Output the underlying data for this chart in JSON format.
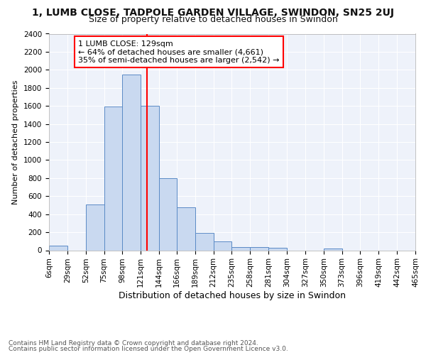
{
  "title": "1, LUMB CLOSE, TADPOLE GARDEN VILLAGE, SWINDON, SN25 2UJ",
  "subtitle": "Size of property relative to detached houses in Swindon",
  "xlabel": "Distribution of detached houses by size in Swindon",
  "ylabel": "Number of detached properties",
  "footnote1": "Contains HM Land Registry data © Crown copyright and database right 2024.",
  "footnote2": "Contains public sector information licensed under the Open Government Licence v3.0.",
  "annotation_line1": "1 LUMB CLOSE: 129sqm",
  "annotation_line2": "← 64% of detached houses are smaller (4,661)",
  "annotation_line3": "35% of semi-detached houses are larger (2,542) →",
  "bar_color": "#c9d9f0",
  "bar_edge_color": "#5a8ac6",
  "redline_x": 129,
  "bin_edges": [
    6,
    29,
    52,
    75,
    98,
    121,
    144,
    166,
    189,
    212,
    235,
    258,
    281,
    304,
    327,
    350,
    373,
    396,
    419,
    442,
    465
  ],
  "bin_labels": [
    "6sqm",
    "29sqm",
    "52sqm",
    "75sqm",
    "98sqm",
    "121sqm",
    "144sqm",
    "166sqm",
    "189sqm",
    "212sqm",
    "235sqm",
    "258sqm",
    "281sqm",
    "304sqm",
    "327sqm",
    "350sqm",
    "373sqm",
    "396sqm",
    "419sqm",
    "442sqm",
    "465sqm"
  ],
  "counts": [
    55,
    0,
    505,
    1590,
    1950,
    1600,
    800,
    475,
    195,
    95,
    35,
    35,
    25,
    0,
    0,
    20,
    0,
    0,
    0,
    0
  ],
  "ylim": [
    0,
    2400
  ],
  "yticks": [
    0,
    200,
    400,
    600,
    800,
    1000,
    1200,
    1400,
    1600,
    1800,
    2000,
    2200,
    2400
  ],
  "background_color": "#eef2fa",
  "grid_color": "#ffffff",
  "title_fontsize": 10,
  "subtitle_fontsize": 9,
  "xlabel_fontsize": 9,
  "ylabel_fontsize": 8,
  "tick_fontsize": 7.5,
  "annotation_fontsize": 8,
  "footnote_fontsize": 6.5
}
